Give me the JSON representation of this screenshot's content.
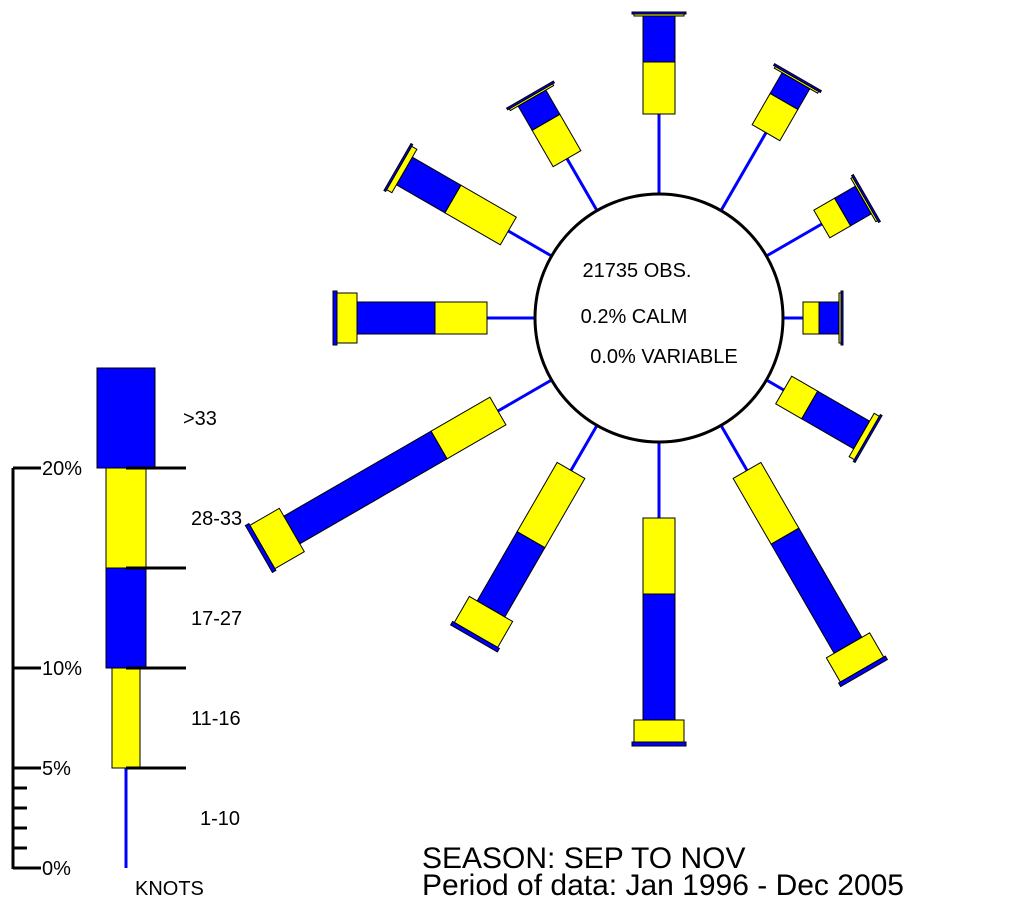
{
  "chart_data": {
    "type": "wind-rose",
    "center": {
      "obs_text": "21735 OBS.",
      "calm_text": "0.2% CALM",
      "variable_text": "0.0% VARIABLE"
    },
    "speed_bins": [
      "1-10",
      "11-16",
      "17-27",
      "28-33",
      ">33"
    ],
    "legend": {
      "speed_labels": [
        ">33",
        "28-33",
        "17-27",
        "11-16",
        "1-10"
      ],
      "unit_label": "KNOTS",
      "percent_ticks": [
        "20%",
        "10%",
        "5%",
        "0%"
      ],
      "sample_percent": [
        5,
        5,
        5,
        5,
        5
      ]
    },
    "directions": [
      {
        "bearing": 0,
        "percent": [
          4.0,
          2.6,
          2.3,
          0.0,
          0.1
        ]
      },
      {
        "bearing": 30,
        "percent": [
          4.5,
          1.8,
          1.2,
          0.1,
          0.1
        ]
      },
      {
        "bearing": 60,
        "percent": [
          3.2,
          1.2,
          1.2,
          0.1,
          0.1
        ]
      },
      {
        "bearing": 90,
        "percent": [
          1.0,
          0.8,
          1.0,
          0.0,
          0.1
        ]
      },
      {
        "bearing": 120,
        "percent": [
          1.0,
          1.5,
          3.0,
          0.3,
          0.0
        ]
      },
      {
        "bearing": 150,
        "percent": [
          2.6,
          3.8,
          6.3,
          1.4,
          0.2
        ]
      },
      {
        "bearing": 180,
        "percent": [
          3.8,
          3.8,
          6.3,
          1.1,
          0.2
        ]
      },
      {
        "bearing": 210,
        "percent": [
          2.6,
          4.0,
          4.0,
          1.5,
          0.2
        ]
      },
      {
        "bearing": 240,
        "percent": [
          3.1,
          3.4,
          8.5,
          1.7,
          0.2
        ]
      },
      {
        "bearing": 270,
        "percent": [
          2.4,
          2.6,
          3.9,
          1.0,
          0.2
        ]
      },
      {
        "bearing": 300,
        "percent": [
          2.5,
          3.2,
          2.8,
          0.3,
          0.1
        ]
      },
      {
        "bearing": 330,
        "percent": [
          3.0,
          2.1,
          1.4,
          0.1,
          0.1
        ]
      }
    ],
    "colors": {
      "yellow": "#ffff00",
      "blue": "#0000ff",
      "stroke": "#000000"
    }
  },
  "footer": {
    "season": "SEASON: SEP TO NOV",
    "period": "Period of data: Jan 1996 - Dec 2005"
  }
}
